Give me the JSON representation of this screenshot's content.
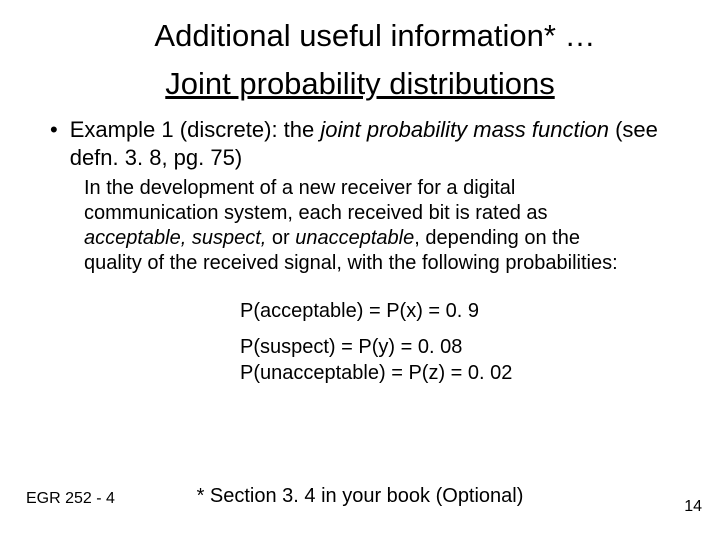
{
  "title": "Additional useful information* …",
  "subtitle": "Joint probability distributions",
  "bullet_prefix": "Example 1 (discrete): the ",
  "bullet_italic": "joint probability mass function",
  "bullet_suffix": " (see defn. 3. 8, pg. 75)",
  "paragraph_part1": "In the development of a new receiver for a digital communication system, each received bit is rated as ",
  "paragraph_italic1": "acceptable, suspect,",
  "paragraph_mid": " or ",
  "paragraph_italic2": "unacceptable",
  "paragraph_part2": ", depending on the quality of the received signal, with the following probabilities:",
  "prob1": "P(acceptable) = P(x) = 0. 9",
  "prob2": "P(suspect) = P(y) = 0. 08",
  "prob3": "P(unacceptable) = P(z) = 0. 02",
  "footer_left": "EGR 252 - 4",
  "footer_center": "* Section 3. 4 in your book (Optional)",
  "page_number": "14"
}
